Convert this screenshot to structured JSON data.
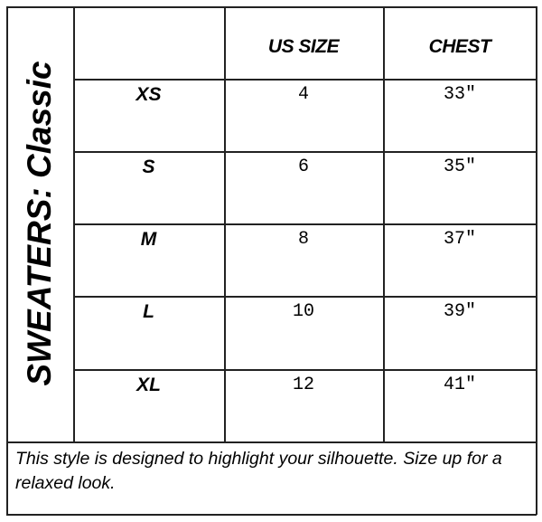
{
  "title": "SWEATERS: Classic",
  "columns": [
    "",
    "US SIZE",
    "CHEST"
  ],
  "rows": [
    {
      "size": "XS",
      "us_size": "4",
      "chest": "33″"
    },
    {
      "size": "S",
      "us_size": "6",
      "chest": "35″"
    },
    {
      "size": "M",
      "us_size": "8",
      "chest": "37″"
    },
    {
      "size": "L",
      "us_size": "10",
      "chest": "39″"
    },
    {
      "size": "XL",
      "us_size": "12",
      "chest": "41″"
    }
  ],
  "note": "This style is designed to highlight your silhouette. Size up for a relaxed look."
}
